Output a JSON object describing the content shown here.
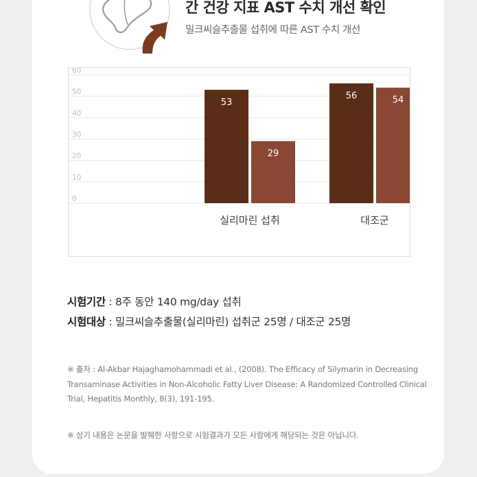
{
  "header": {
    "title": "간 건강 지표 AST 수치 개선 확인",
    "subtitle": "밀크씨슬추출물 섭취에 따른 AST 수치 개선"
  },
  "illustration": {
    "icon": "liver-icon",
    "arrow": "up-arrow-icon"
  },
  "chart_data": {
    "type": "bar",
    "categories": [
      "실리마린 섭취",
      "대조군"
    ],
    "series": [
      {
        "values": [
          53,
          56
        ],
        "color": "#5a2d16"
      },
      {
        "values": [
          29,
          54
        ],
        "color": "#8a4733"
      }
    ],
    "ylim": [
      0,
      60
    ],
    "yticks": [
      "0",
      "10",
      "20",
      "30",
      "40",
      "50",
      "60"
    ],
    "grid": true,
    "xlabel": "",
    "ylabel": ""
  },
  "study": {
    "period_label": "시험기간",
    "period_text": " : 8주 동안 140 mg/day 섭취",
    "subject_label": "시험대상",
    "subject_text": " : 밀크씨슬추출물(실리마린) 섭취군 25명 / 대조군 25명"
  },
  "reference": "※ 출처 : Al-Akbar Hajaghamohammadi et al., (2008). The Efficacy of Silymarin in Decreasing Transaminase Activities in Non-Alcoholic Fatty Liver Disease: A Randomized Controlled Clinical Trial, Hepatitis Monthly, 8(3), 191-195.",
  "disclaimer": "※ 상기 내용은 논문을 발췌한 사항으로 시험결과가 모든 사람에게 해당되는 것은 아닙니다."
}
